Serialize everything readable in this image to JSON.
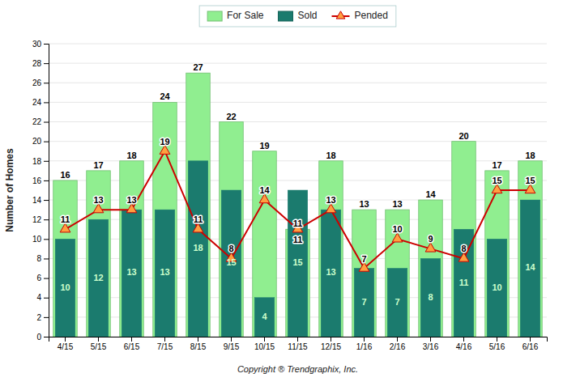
{
  "chart_data": {
    "type": "bar",
    "categories": [
      "4/15",
      "5/15",
      "6/15",
      "7/15",
      "8/15",
      "9/15",
      "10/15",
      "11/15",
      "12/15",
      "1/16",
      "2/16",
      "3/16",
      "4/16",
      "5/16",
      "6/16"
    ],
    "series": [
      {
        "name": "For Sale",
        "type": "bar",
        "color": "#90EE90",
        "values": [
          16,
          17,
          18,
          24,
          27,
          22,
          19,
          11,
          18,
          13,
          13,
          14,
          20,
          17,
          18
        ]
      },
      {
        "name": "Sold",
        "type": "bar",
        "color": "#1B7B6E",
        "values": [
          10,
          12,
          13,
          13,
          18,
          15,
          4,
          15,
          13,
          7,
          7,
          8,
          11,
          10,
          14
        ]
      },
      {
        "name": "Pended",
        "type": "line",
        "color": "#CC0000",
        "marker": "triangle",
        "line_style": "solid",
        "values": [
          11,
          13,
          13,
          19,
          11,
          8,
          14,
          11,
          13,
          7,
          10,
          9,
          8,
          15,
          15
        ]
      }
    ],
    "xlabel": "Copyright ® Trendgraphix, Inc.",
    "ylabel": "Number of Homes",
    "ylim": [
      0,
      30
    ],
    "yticks": [
      0,
      2,
      4,
      6,
      8,
      10,
      12,
      14,
      16,
      18,
      20,
      22,
      24,
      26,
      28,
      30
    ],
    "grid": true,
    "legend": "top",
    "data_labels": true
  }
}
